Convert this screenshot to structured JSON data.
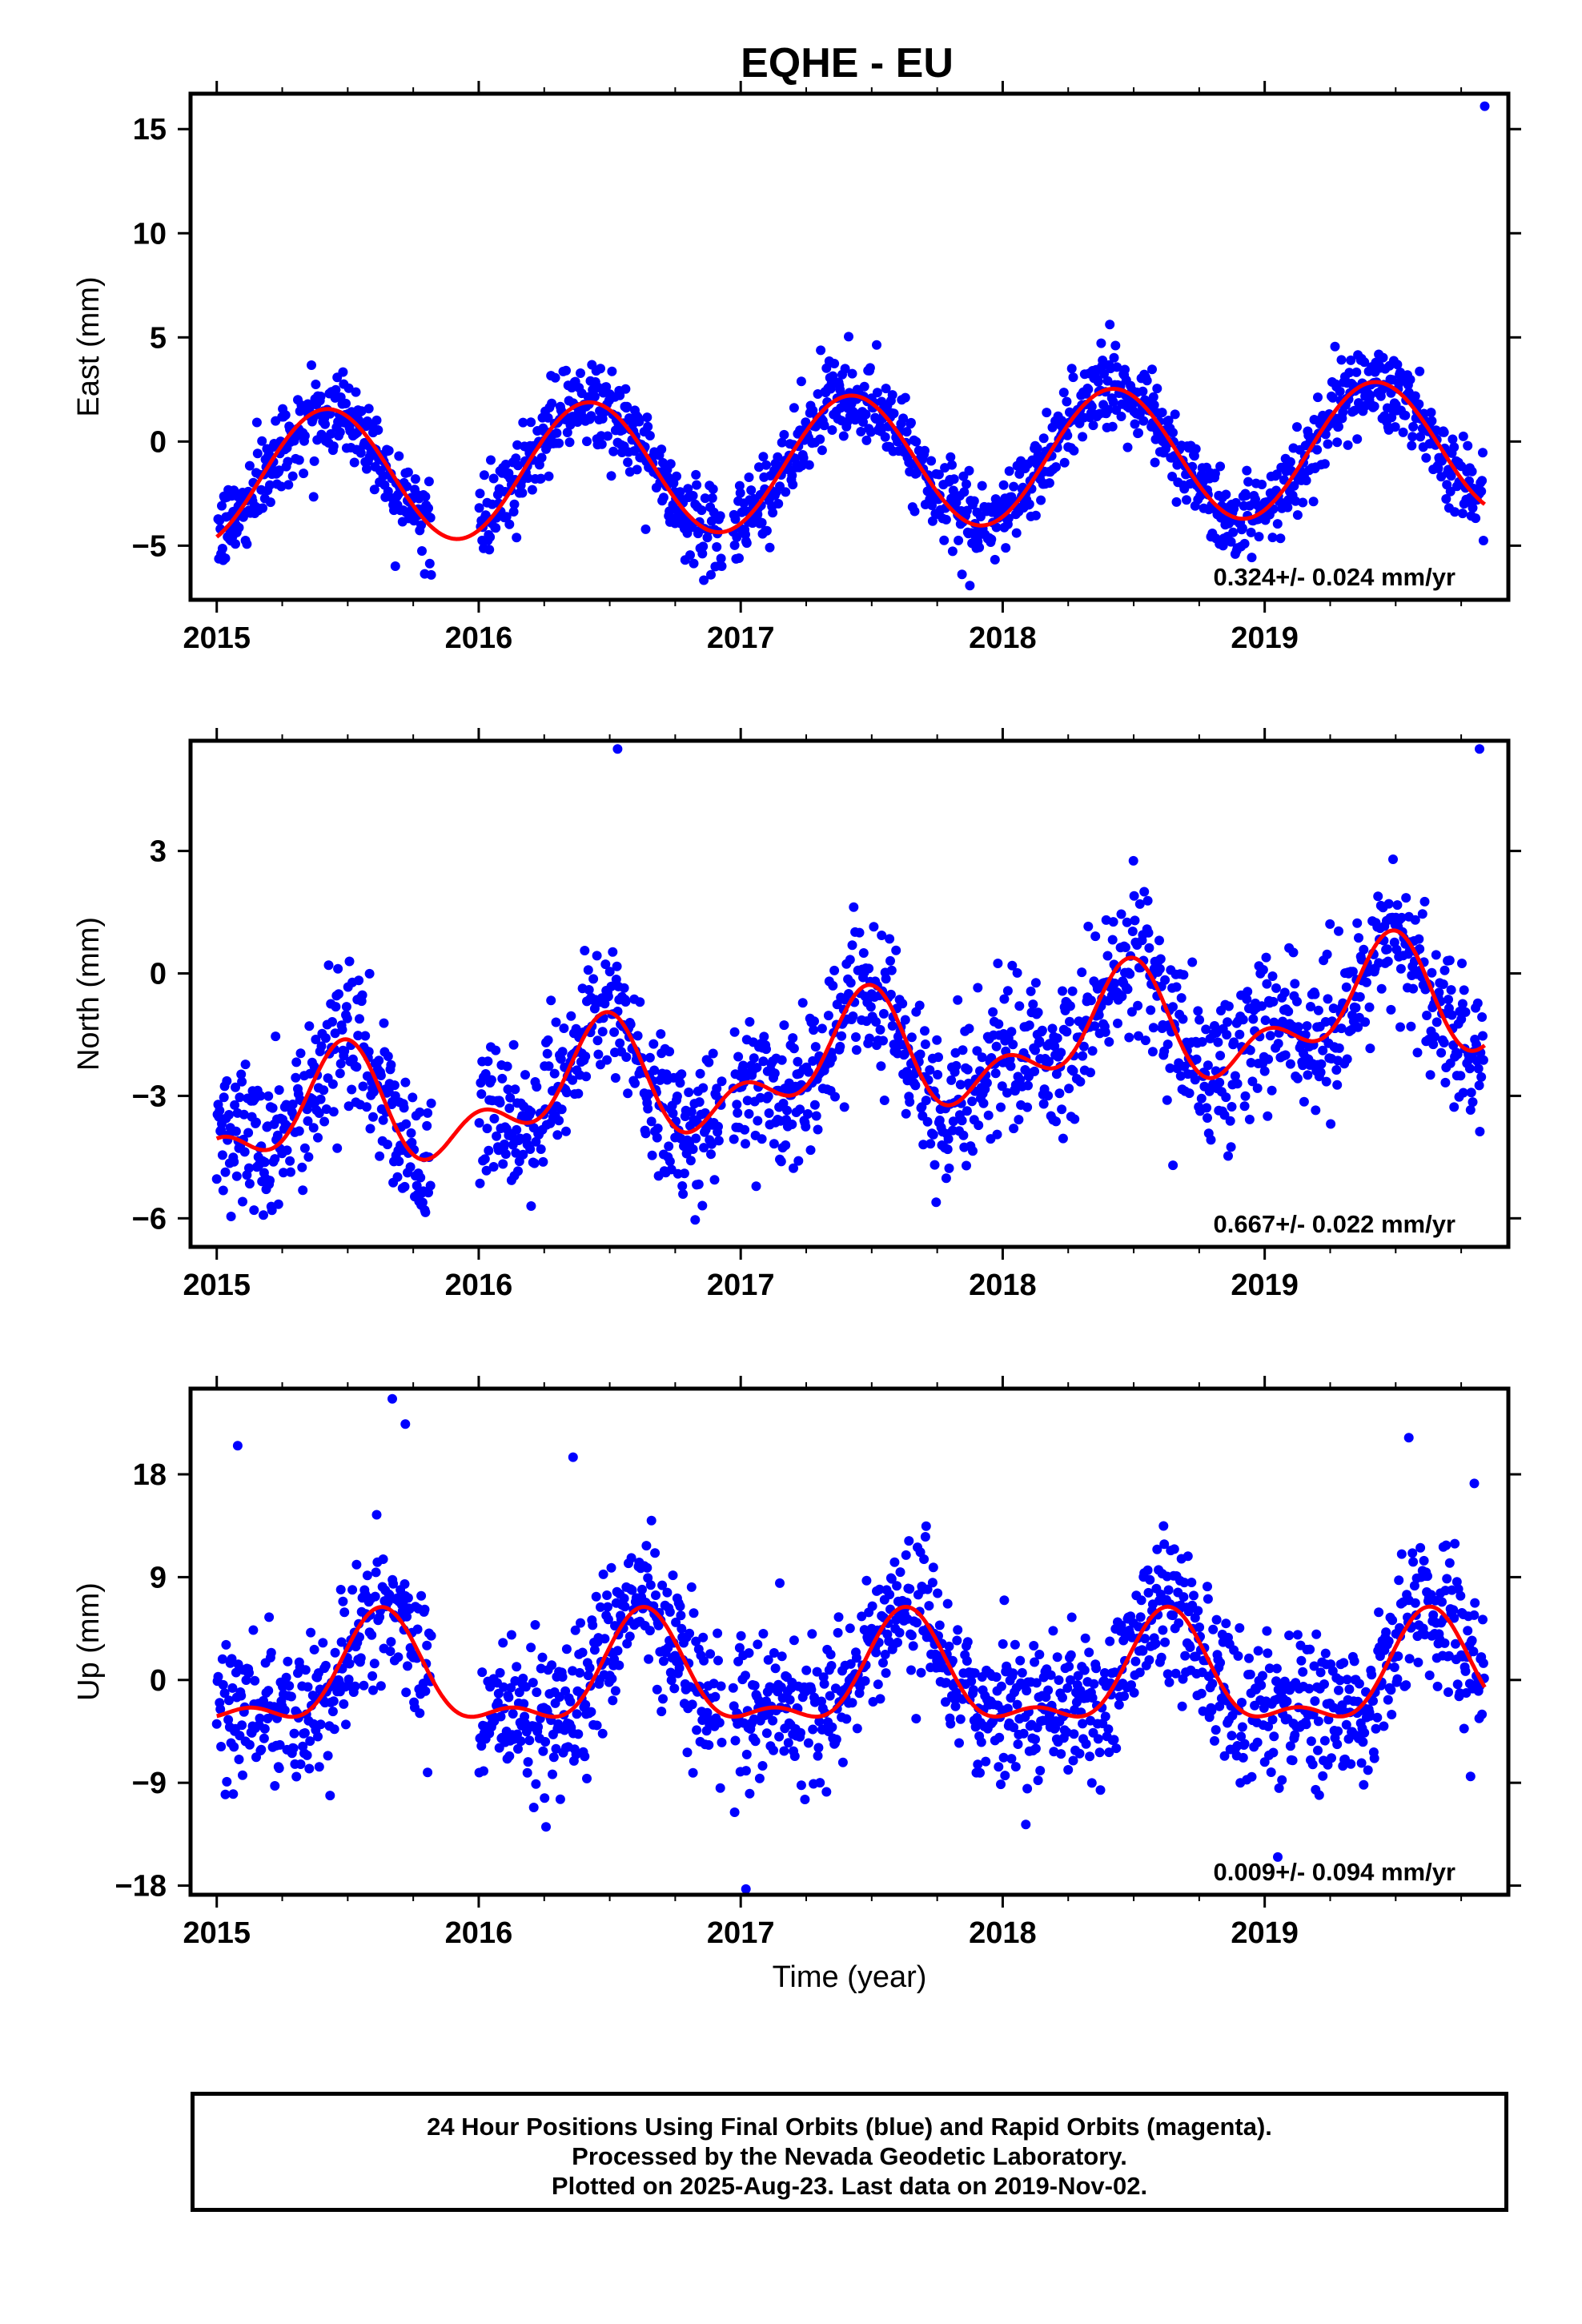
{
  "title": "EQHE - EU",
  "colors": {
    "points": "#0000ff",
    "fit": "#ff0000",
    "frame": "#000000",
    "background": "#ffffff"
  },
  "chart_data": [
    {
      "type": "scatter",
      "name": "east",
      "ylabel": "East (mm)",
      "xlabel": "",
      "xlim": [
        2014.9,
        2019.93
      ],
      "ylim": [
        -7.6,
        16.7
      ],
      "xticks": [
        2015,
        2016,
        2017,
        2018,
        2019
      ],
      "yticks": [
        -5,
        0,
        5,
        10,
        15
      ],
      "rate_text": "0.324+/- 0.024 mm/yr",
      "x_start": 2015.0,
      "x_end": 2019.84,
      "trend": {
        "slope": 0.324,
        "intercept": -1.0
      },
      "seasonal": {
        "annual_amp": 3.2,
        "annual_peak": 0.42,
        "semiannual_amp": 0.0,
        "semiannual_peak": 0.0
      },
      "scatter_sd": 1.0,
      "outliers": [
        [
          2019.84,
          16.1
        ]
      ],
      "fit_lw": 5
    },
    {
      "type": "scatter",
      "name": "north",
      "ylabel": "North (mm)",
      "xlabel": "",
      "xlim": [
        2014.9,
        2019.93
      ],
      "ylim": [
        -6.7,
        5.7
      ],
      "xticks": [
        2015,
        2016,
        2017,
        2018,
        2019
      ],
      "yticks": [
        -6,
        -3,
        0,
        3
      ],
      "rate_text": "0.667+/- 0.022 mm/yr",
      "x_start": 2015.0,
      "x_end": 2019.84,
      "trend": {
        "slope": 0.667,
        "intercept": -2.2
      },
      "seasonal": {
        "annual_amp": 1.1,
        "annual_peak": 0.45,
        "semiannual_amp": 0.8,
        "semiannual_peak": 0.5
      },
      "scatter_sd": 0.9,
      "outliers": [
        [
          2016.53,
          5.5
        ],
        [
          2019.82,
          5.5
        ],
        [
          2018.65,
          -4.7
        ],
        [
          2016.2,
          -5.7
        ]
      ],
      "fit_lw": 5
    },
    {
      "type": "scatter",
      "name": "up",
      "ylabel": "Up (mm)",
      "xlabel": "Time (year)",
      "xlim": [
        2014.9,
        2019.93
      ],
      "ylim": [
        -18.8,
        25.5
      ],
      "xticks": [
        2015,
        2016,
        2017,
        2018,
        2019
      ],
      "yticks": [
        -18,
        -9,
        0,
        9,
        18
      ],
      "rate_text": "0.009+/- 0.094 mm/yr",
      "x_start": 2015.0,
      "x_end": 2019.84,
      "trend": {
        "slope": 0.009,
        "intercept": 0.0
      },
      "seasonal": {
        "annual_amp": 4.4,
        "annual_peak": 0.63,
        "semiannual_amp": 2.0,
        "semiannual_peak": 0.63
      },
      "scatter_sd": 3.2,
      "outliers": [
        [
          2015.67,
          24.6
        ],
        [
          2015.72,
          22.4
        ],
        [
          2015.08,
          20.5
        ],
        [
          2019.55,
          21.2
        ],
        [
          2016.36,
          19.5
        ],
        [
          2019.8,
          17.2
        ],
        [
          2017.02,
          -18.3
        ],
        [
          2019.05,
          -15.5
        ]
      ],
      "fit_lw": 5
    }
  ],
  "footer": {
    "line1": "24 Hour Positions Using Final Orbits (blue) and Rapid Orbits (magenta).",
    "line2": "Processed by the Nevada Geodetic Laboratory.",
    "line3": "Plotted on 2025-Aug-23. Last data on 2019-Nov-02."
  }
}
